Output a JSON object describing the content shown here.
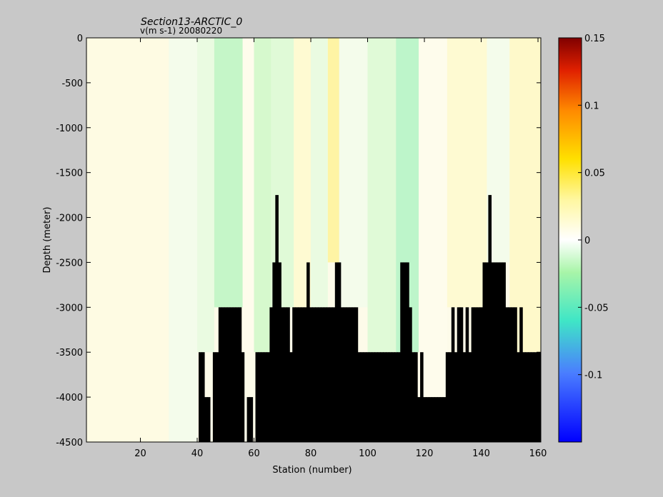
{
  "chart_data": {
    "type": "heatmap",
    "title": "Section13-ARCTIC_0",
    "subtitle": "v(m s-1)  20080220",
    "xlabel": "Station (number)",
    "ylabel": "Depth (meter)",
    "xlim": [
      1,
      161
    ],
    "ylim": [
      -4500,
      0
    ],
    "xticks": [
      20,
      40,
      60,
      80,
      100,
      120,
      140,
      160
    ],
    "yticks": [
      0,
      -500,
      -1000,
      -1500,
      -2000,
      -2500,
      -3000,
      -3500,
      -4000,
      -4500
    ],
    "colorbar": {
      "min": -0.15,
      "max": 0.15,
      "ticks": [
        0.15,
        0.1,
        0.05,
        0,
        -0.05,
        -0.1
      ],
      "tick_labels": [
        "0.15",
        "0.1",
        "0.05",
        "0",
        "-0.05",
        "-0.1"
      ],
      "colormap": "jet-white-center"
    },
    "bathymetry_depth_m_by_station": [
      [
        41,
        3500
      ],
      [
        42,
        3500
      ],
      [
        43,
        4000
      ],
      [
        44,
        4000
      ],
      [
        45,
        4500
      ],
      [
        46,
        3500
      ],
      [
        47,
        3500
      ],
      [
        48,
        3000
      ],
      [
        49,
        3000
      ],
      [
        50,
        3000
      ],
      [
        51,
        3000
      ],
      [
        52,
        3000
      ],
      [
        53,
        3000
      ],
      [
        54,
        3000
      ],
      [
        55,
        3000
      ],
      [
        56,
        3500
      ],
      [
        57,
        4500
      ],
      [
        58,
        4000
      ],
      [
        59,
        4000
      ],
      [
        60,
        4500
      ],
      [
        61,
        3500
      ],
      [
        62,
        3500
      ],
      [
        63,
        3500
      ],
      [
        64,
        3500
      ],
      [
        65,
        3500
      ],
      [
        66,
        3000
      ],
      [
        67,
        2500
      ],
      [
        68,
        1750
      ],
      [
        69,
        2500
      ],
      [
        70,
        3000
      ],
      [
        71,
        3000
      ],
      [
        72,
        3000
      ],
      [
        73,
        3500
      ],
      [
        74,
        3000
      ],
      [
        75,
        3000
      ],
      [
        76,
        3000
      ],
      [
        77,
        3000
      ],
      [
        78,
        3000
      ],
      [
        79,
        2500
      ],
      [
        80,
        3000
      ],
      [
        81,
        3000
      ],
      [
        82,
        3000
      ],
      [
        83,
        3000
      ],
      [
        84,
        3000
      ],
      [
        85,
        3000
      ],
      [
        86,
        3000
      ],
      [
        87,
        3000
      ],
      [
        88,
        3000
      ],
      [
        89,
        2500
      ],
      [
        90,
        2500
      ],
      [
        91,
        3000
      ],
      [
        92,
        3000
      ],
      [
        93,
        3000
      ],
      [
        94,
        3000
      ],
      [
        95,
        3000
      ],
      [
        96,
        3000
      ],
      [
        97,
        3500
      ],
      [
        98,
        3500
      ],
      [
        99,
        3500
      ],
      [
        100,
        3500
      ],
      [
        101,
        3500
      ],
      [
        102,
        3500
      ],
      [
        103,
        3500
      ],
      [
        104,
        3500
      ],
      [
        105,
        3500
      ],
      [
        106,
        3500
      ],
      [
        107,
        3500
      ],
      [
        108,
        3500
      ],
      [
        109,
        3500
      ],
      [
        110,
        3500
      ],
      [
        111,
        3500
      ],
      [
        112,
        2500
      ],
      [
        113,
        2500
      ],
      [
        114,
        2500
      ],
      [
        115,
        3000
      ],
      [
        116,
        3500
      ],
      [
        117,
        3500
      ],
      [
        118,
        4000
      ],
      [
        119,
        3500
      ],
      [
        120,
        4000
      ],
      [
        121,
        4000
      ],
      [
        122,
        4000
      ],
      [
        123,
        4000
      ],
      [
        124,
        4000
      ],
      [
        125,
        4000
      ],
      [
        126,
        4000
      ],
      [
        127,
        4000
      ],
      [
        128,
        3500
      ],
      [
        129,
        3500
      ],
      [
        130,
        3000
      ],
      [
        131,
        3500
      ],
      [
        132,
        3000
      ],
      [
        133,
        3000
      ],
      [
        134,
        3500
      ],
      [
        135,
        3000
      ],
      [
        136,
        3500
      ],
      [
        137,
        3000
      ],
      [
        138,
        3000
      ],
      [
        139,
        3000
      ],
      [
        140,
        3000
      ],
      [
        141,
        2500
      ],
      [
        142,
        2500
      ],
      [
        143,
        1750
      ],
      [
        144,
        2500
      ],
      [
        145,
        2500
      ],
      [
        146,
        2500
      ],
      [
        147,
        2500
      ],
      [
        148,
        2500
      ],
      [
        149,
        3000
      ],
      [
        150,
        3000
      ],
      [
        151,
        3000
      ],
      [
        152,
        3000
      ],
      [
        153,
        3500
      ],
      [
        154,
        3000
      ],
      [
        155,
        3500
      ],
      [
        156,
        3500
      ],
      [
        157,
        3500
      ],
      [
        158,
        3500
      ],
      [
        159,
        3500
      ],
      [
        160,
        3500
      ],
      [
        161,
        3500
      ]
    ],
    "velocity_anomaly_bands": [
      {
        "x": [
          1,
          30
        ],
        "depth": [
          0,
          4500
        ],
        "v": 0.01
      },
      {
        "x": [
          30,
          40
        ],
        "depth": [
          0,
          4500
        ],
        "v": -0.005
      },
      {
        "x": [
          40,
          46
        ],
        "depth": [
          0,
          3500
        ],
        "v": -0.01
      },
      {
        "x": [
          46,
          56
        ],
        "depth": [
          0,
          3000
        ],
        "v": -0.03
      },
      {
        "x": [
          56,
          60
        ],
        "depth": [
          0,
          3500
        ],
        "v": 0.005
      },
      {
        "x": [
          60,
          66
        ],
        "depth": [
          0,
          3500
        ],
        "v": -0.02
      },
      {
        "x": [
          66,
          74
        ],
        "depth": [
          0,
          3000
        ],
        "v": -0.015
      },
      {
        "x": [
          74,
          80
        ],
        "depth": [
          0,
          3000
        ],
        "v": 0.02
      },
      {
        "x": [
          80,
          86
        ],
        "depth": [
          0,
          3000
        ],
        "v": -0.01
      },
      {
        "x": [
          86,
          90
        ],
        "depth": [
          0,
          2500
        ],
        "v": 0.04
      },
      {
        "x": [
          90,
          100
        ],
        "depth": [
          0,
          3000
        ],
        "v": -0.005
      },
      {
        "x": [
          100,
          110
        ],
        "depth": [
          0,
          3500
        ],
        "v": -0.015
      },
      {
        "x": [
          110,
          118
        ],
        "depth": [
          0,
          3500
        ],
        "v": -0.035
      },
      {
        "x": [
          118,
          128
        ],
        "depth": [
          0,
          4000
        ],
        "v": 0.005
      },
      {
        "x": [
          128,
          142
        ],
        "depth": [
          0,
          3000
        ],
        "v": 0.02
      },
      {
        "x": [
          142,
          150
        ],
        "depth": [
          0,
          2500
        ],
        "v": -0.005
      },
      {
        "x": [
          150,
          161
        ],
        "depth": [
          0,
          3500
        ],
        "v": 0.025
      }
    ],
    "grid": false
  }
}
